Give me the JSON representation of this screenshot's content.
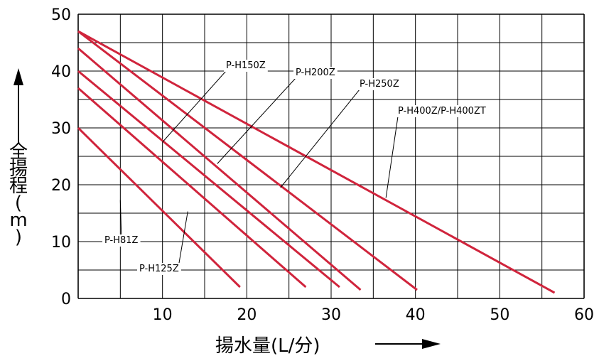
{
  "chart_data": {
    "type": "line",
    "xlabel": "揚水量(L/分)",
    "ylabel": "全揚程(m)",
    "xlim": [
      0,
      60
    ],
    "ylim": [
      0,
      50
    ],
    "x_ticks": [
      "10",
      "20",
      "30",
      "40",
      "50",
      "60"
    ],
    "y_ticks": [
      "0",
      "10",
      "20",
      "30",
      "40",
      "50"
    ],
    "grid": true,
    "line_color": "#d0243c",
    "series": [
      {
        "name": "P-H81Z",
        "x": [
          0,
          19.2
        ],
        "y": [
          30,
          2
        ]
      },
      {
        "name": "P-H125Z",
        "x": [
          0,
          27
        ],
        "y": [
          37,
          2
        ]
      },
      {
        "name": "P-H150Z",
        "x": [
          0,
          31
        ],
        "y": [
          40,
          2
        ]
      },
      {
        "name": "P-H200Z",
        "x": [
          0,
          33.5
        ],
        "y": [
          44,
          1.5
        ]
      },
      {
        "name": "P-H250Z",
        "x": [
          0,
          40.2
        ],
        "y": [
          47,
          1.5
        ]
      },
      {
        "name": "P-H400Z/P-H400ZT",
        "x": [
          0,
          56.5
        ],
        "y": [
          47,
          1
        ]
      }
    ]
  }
}
